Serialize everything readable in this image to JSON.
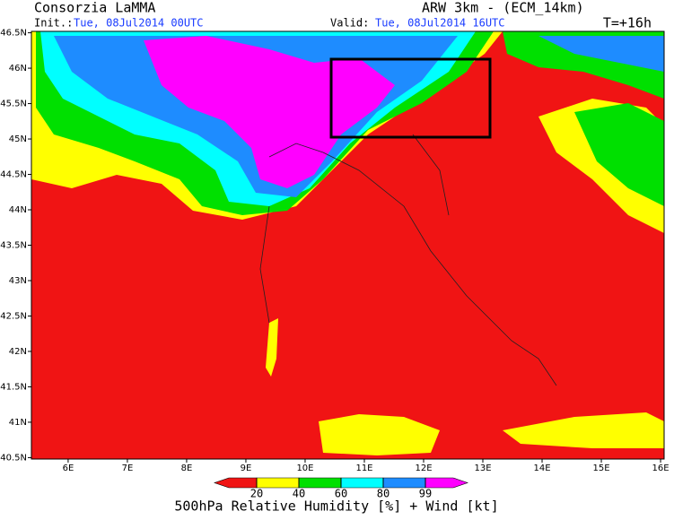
{
  "header": {
    "institution": "Consorzia LaMMA",
    "init_label": "Init.:",
    "init_time": "Tue, 08Jul2014 00UTC",
    "model": "ARW 3km - (ECM_14km)",
    "valid_label": "Valid:",
    "valid_time": "Tue, 08Jul2014 16UTC",
    "lead_time": "T=+16h"
  },
  "map": {
    "xlim": [
      5.38,
      16.06
    ],
    "ylim": [
      40.48,
      46.52
    ],
    "xticks": [
      {
        "value": 6,
        "label": "6E"
      },
      {
        "value": 7,
        "label": "7E"
      },
      {
        "value": 8,
        "label": "8E"
      },
      {
        "value": 9,
        "label": "9E"
      },
      {
        "value": 10,
        "label": "10E"
      },
      {
        "value": 11,
        "label": "11E"
      },
      {
        "value": 12,
        "label": "12E"
      },
      {
        "value": 13,
        "label": "13E"
      },
      {
        "value": 14,
        "label": "14E"
      },
      {
        "value": 15,
        "label": "15E"
      },
      {
        "value": 16,
        "label": "16E"
      }
    ],
    "yticks": [
      {
        "value": 46.5,
        "label": "46.5N"
      },
      {
        "value": 46,
        "label": "46N"
      },
      {
        "value": 45.5,
        "label": "45.5N"
      },
      {
        "value": 45,
        "label": "45N"
      },
      {
        "value": 44.5,
        "label": "44.5N"
      },
      {
        "value": 44,
        "label": "44N"
      },
      {
        "value": 43.5,
        "label": "43.5N"
      },
      {
        "value": 43,
        "label": "43N"
      },
      {
        "value": 42.5,
        "label": "42.5N"
      },
      {
        "value": 42,
        "label": "42N"
      },
      {
        "value": 41.5,
        "label": "41.5N"
      },
      {
        "value": 41,
        "label": "41N"
      },
      {
        "value": 40.5,
        "label": "40.5N"
      }
    ]
  },
  "colorbar": {
    "ticks": [
      20,
      40,
      60,
      80,
      99
    ],
    "colors": [
      "#f01414",
      "#ffff00",
      "#00e000",
      "#00ffff",
      "#1e8cff",
      "#ff00ff"
    ]
  },
  "caption": "500hPa Relative Humidity [%] + Wind [kt]"
}
